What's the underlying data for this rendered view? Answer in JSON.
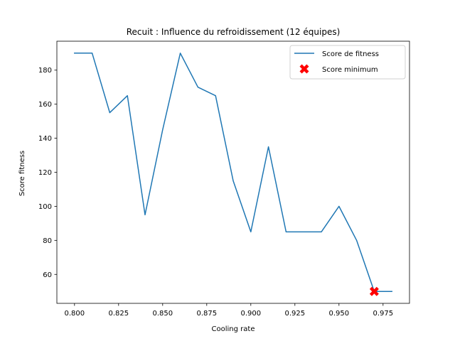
{
  "chart_data": {
    "type": "line",
    "title": "Recuit : Influence du refroidissement (12 équipes)",
    "xlabel": "Cooling rate",
    "ylabel": "Score fitness",
    "xlim": [
      0.79,
      0.99
    ],
    "ylim": [
      43,
      197
    ],
    "xticks": [
      0.8,
      0.825,
      0.85,
      0.875,
      0.9,
      0.925,
      0.95,
      0.975
    ],
    "xtick_labels": [
      "0.800",
      "0.825",
      "0.850",
      "0.875",
      "0.900",
      "0.925",
      "0.950",
      "0.975"
    ],
    "yticks": [
      60,
      80,
      100,
      120,
      140,
      160,
      180
    ],
    "ytick_labels": [
      "60",
      "80",
      "100",
      "120",
      "140",
      "160",
      "180"
    ],
    "grid": false,
    "legend_position": "top-right",
    "series": [
      {
        "name": "Score de fitness",
        "kind": "line",
        "color": "#1f77b4",
        "x": [
          0.8,
          0.81,
          0.82,
          0.83,
          0.84,
          0.85,
          0.86,
          0.87,
          0.88,
          0.89,
          0.9,
          0.91,
          0.92,
          0.93,
          0.94,
          0.95,
          0.96,
          0.97,
          0.98
        ],
        "y": [
          190,
          190,
          155,
          165,
          95,
          145,
          190,
          170,
          165,
          115,
          85,
          135,
          85,
          85,
          85,
          100,
          80,
          50,
          50
        ]
      },
      {
        "name": "Score minimum",
        "kind": "marker",
        "color": "#ff0000",
        "marker": "X",
        "x": [
          0.97
        ],
        "y": [
          50
        ]
      }
    ]
  }
}
